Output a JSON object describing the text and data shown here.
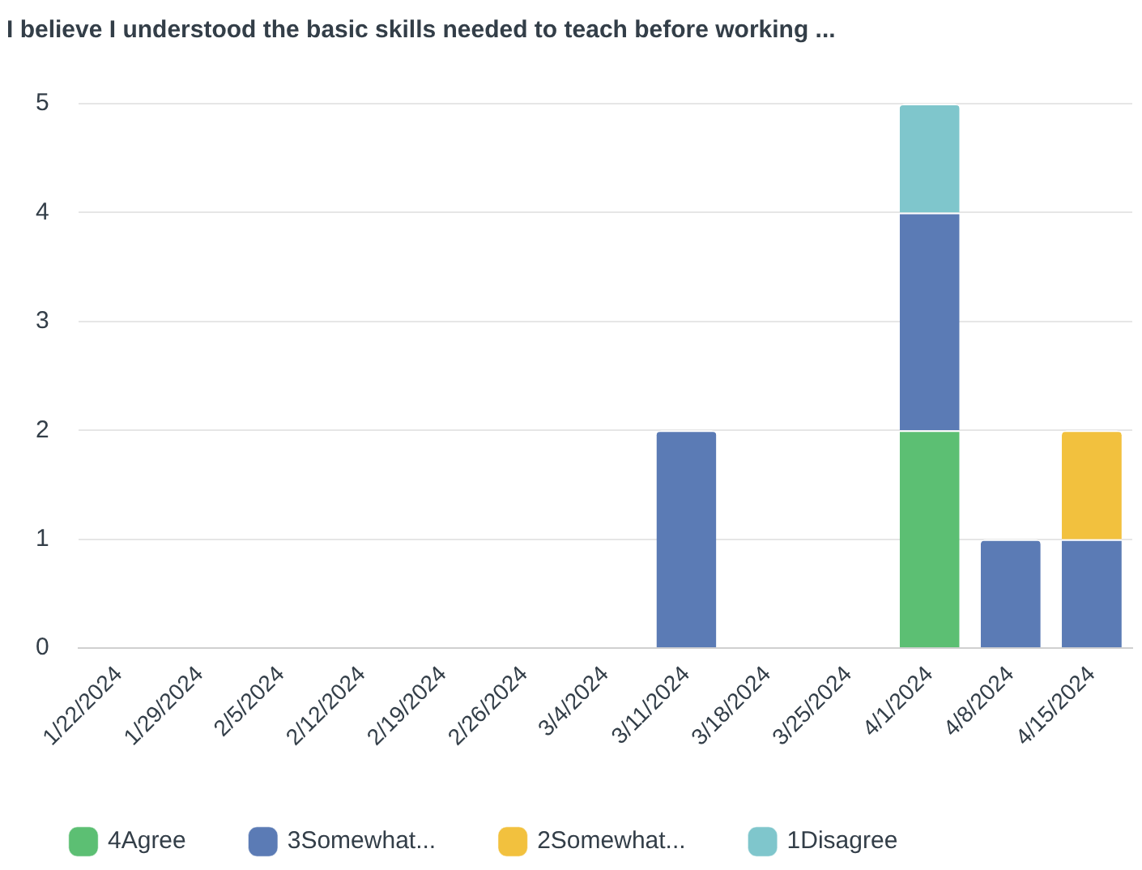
{
  "chart_data": {
    "type": "bar",
    "title": "I believe I understood the basic skills needed to teach before working ...",
    "categories": [
      "1/22/2024",
      "1/29/2024",
      "2/5/2024",
      "2/12/2024",
      "2/19/2024",
      "2/26/2024",
      "3/4/2024",
      "3/11/2024",
      "3/18/2024",
      "3/25/2024",
      "4/1/2024",
      "4/8/2024",
      "4/15/2024"
    ],
    "series": [
      {
        "name": "4Agree",
        "color": "#5cbf73",
        "values": [
          0,
          0,
          0,
          0,
          0,
          0,
          0,
          0,
          0,
          0,
          2,
          0,
          0
        ]
      },
      {
        "name": "3Somewhat...",
        "color": "#5b7bb5",
        "values": [
          0,
          0,
          0,
          0,
          0,
          0,
          0,
          2,
          0,
          0,
          2,
          1,
          1
        ]
      },
      {
        "name": "2Somewhat...",
        "color": "#f2c13e",
        "values": [
          0,
          0,
          0,
          0,
          0,
          0,
          0,
          0,
          0,
          0,
          0,
          0,
          1
        ]
      },
      {
        "name": "1Disagree",
        "color": "#7fc6cc",
        "values": [
          0,
          0,
          0,
          0,
          0,
          0,
          0,
          0,
          0,
          0,
          1,
          0,
          0
        ]
      }
    ],
    "stacked": true,
    "ylim": [
      0,
      5
    ],
    "yticks": [
      0,
      1,
      2,
      3,
      4,
      5
    ],
    "grid": "y",
    "legend": "bottom left"
  }
}
